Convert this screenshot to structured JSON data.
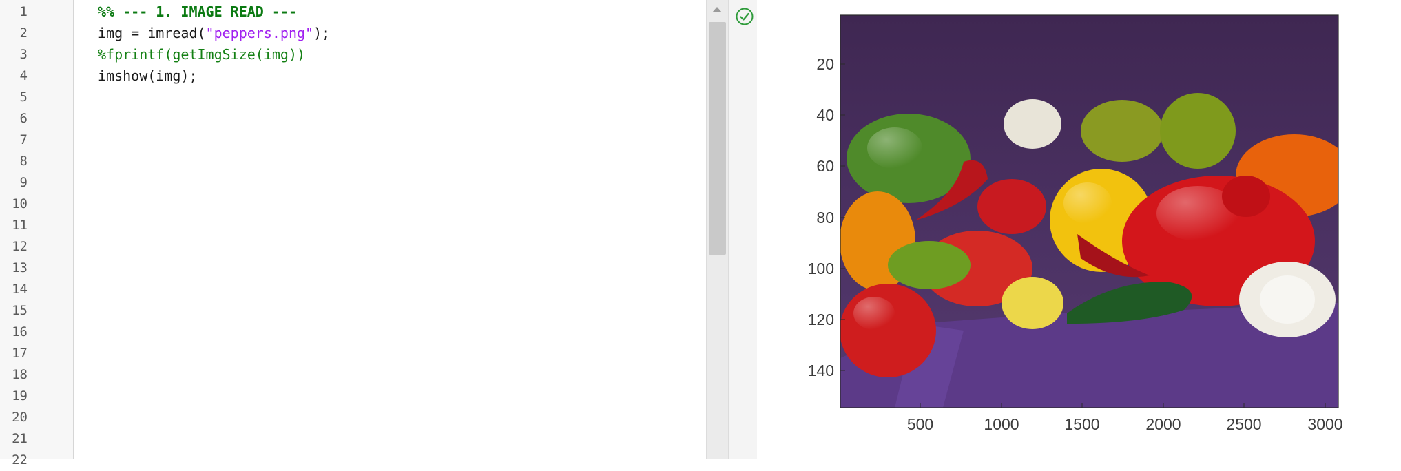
{
  "editor": {
    "line_numbers": [
      "1",
      "2",
      "3",
      "4",
      "5",
      "6",
      "7",
      "8",
      "9",
      "10",
      "11",
      "12",
      "13",
      "14",
      "15",
      "16",
      "17",
      "18",
      "19",
      "20",
      "21",
      "22"
    ],
    "code": {
      "line1": "%% --- 1. IMAGE READ ---",
      "line2_a": "img = imread(",
      "line2_str": "\"peppers.png\"",
      "line2_b": ");",
      "line3": "%fprintf(getImgSize(img))",
      "line4": "imshow(img);"
    },
    "status_icon": "check-circle-icon",
    "colors": {
      "section": "#0b7a12",
      "comment": "#148014",
      "string": "#a020f0",
      "ok": "#2e9b3a"
    }
  },
  "figure": {
    "image_subject": "peppers",
    "y_ticks": [
      "20",
      "40",
      "60",
      "80",
      "100",
      "120",
      "140"
    ],
    "x_ticks": [
      "500",
      "1000",
      "1500",
      "2000",
      "2500",
      "3000"
    ],
    "colors": {
      "backdrop": "#4a2d5e",
      "cloth": "#5e3b8a"
    }
  }
}
